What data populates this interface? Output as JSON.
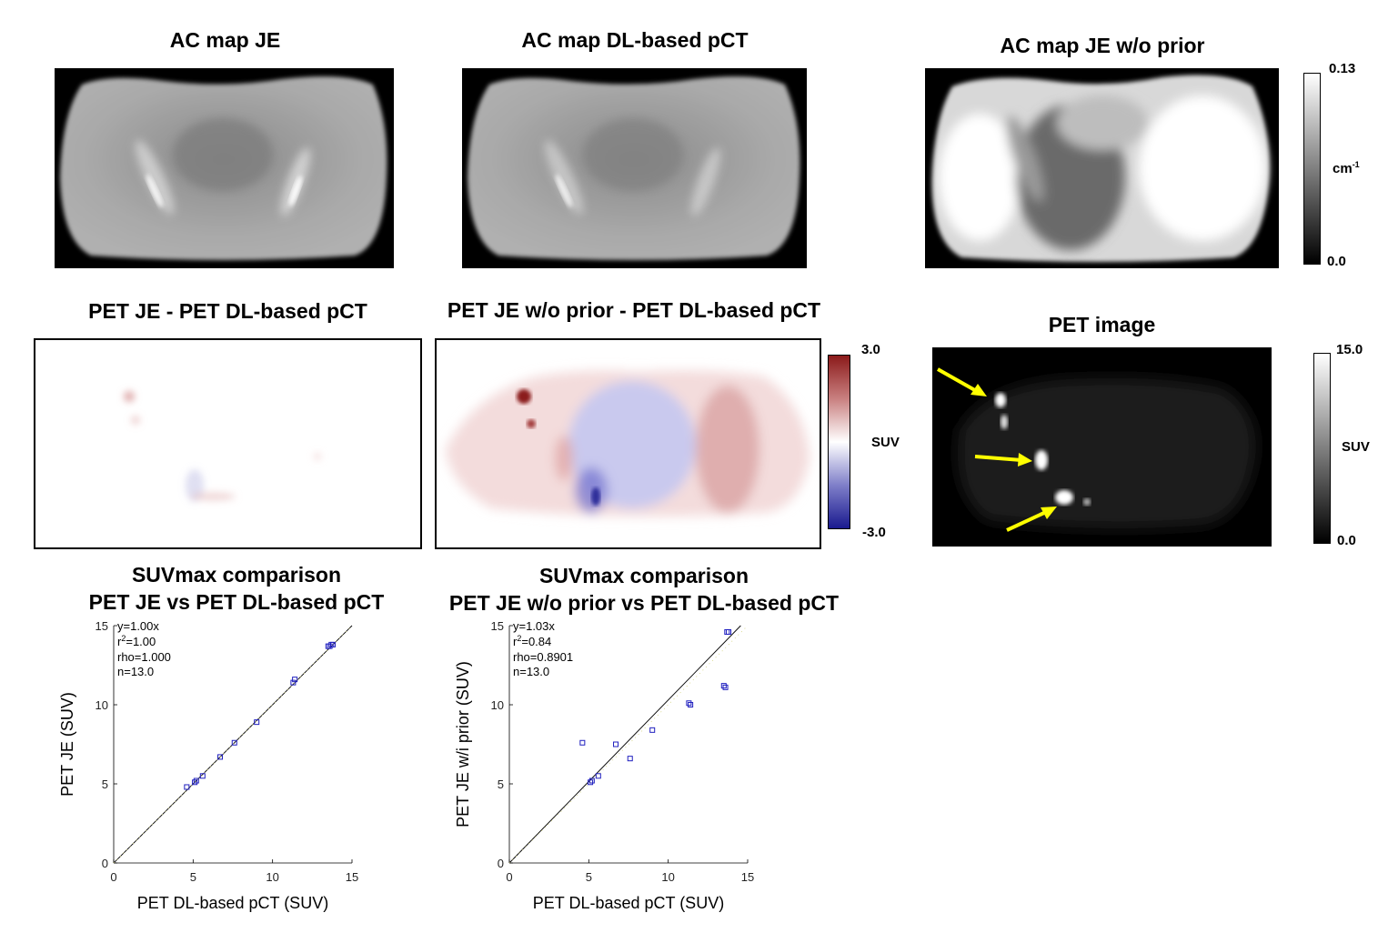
{
  "panels": {
    "ac_je": {
      "title": "AC map JE"
    },
    "ac_dl": {
      "title": "AC map DL-based pCT"
    },
    "ac_noprior": {
      "title": "AC map JE w/o prior"
    },
    "diff_je": {
      "title": "PET JE - PET DL-based pCT"
    },
    "diff_noprior": {
      "title": "PET JE w/o prior - PET DL-based pCT"
    },
    "pet": {
      "title": "PET image"
    }
  },
  "colorbars": {
    "ac": {
      "max": "0.13",
      "min": "0.0",
      "unit_base": "cm",
      "unit_sup": "-1"
    },
    "diff": {
      "max": "3.0",
      "min": "-3.0",
      "unit": "SUV"
    },
    "pet": {
      "max": "15.0",
      "min": "0.0",
      "unit": "SUV"
    }
  },
  "colors": {
    "diff_positive": "#8b1a1a",
    "diff_negative": "#1a1a8f",
    "arrow": "#ffff00",
    "marker": "#1f1fbf"
  },
  "chart_data": [
    {
      "type": "scatter",
      "title": [
        "SUVmax comparison",
        "PET JE vs PET DL-based pCT"
      ],
      "xlabel": "PET DL-based pCT (SUV)",
      "ylabel": "PET JE (SUV)",
      "xlim": [
        0,
        15
      ],
      "ylim": [
        0,
        15
      ],
      "xticks": [
        "0",
        "5",
        "10",
        "15"
      ],
      "yticks": [
        "0",
        "5",
        "10",
        "15"
      ],
      "fit_slope": 1.0,
      "stats": [
        "y=1.00x",
        "r",
        "2",
        "=1.00",
        "rho=1.000",
        "n=13.0"
      ],
      "points": [
        [
          4.6,
          4.8
        ],
        [
          5.1,
          5.1
        ],
        [
          5.2,
          5.2
        ],
        [
          5.6,
          5.5
        ],
        [
          6.7,
          6.7
        ],
        [
          7.6,
          7.6
        ],
        [
          9.0,
          8.9
        ],
        [
          11.3,
          11.4
        ],
        [
          11.4,
          11.6
        ],
        [
          13.5,
          13.7
        ],
        [
          13.7,
          13.8
        ],
        [
          13.8,
          13.8
        ],
        [
          13.6,
          13.7
        ]
      ]
    },
    {
      "type": "scatter",
      "title": [
        "SUVmax comparison",
        "PET JE w/o prior vs PET DL-based pCT"
      ],
      "xlabel": "PET DL-based pCT (SUV)",
      "ylabel": "PET JE w/i prior (SUV)",
      "xlim": [
        0,
        15
      ],
      "ylim": [
        0,
        15
      ],
      "xticks": [
        "0",
        "5",
        "10",
        "15"
      ],
      "yticks": [
        "0",
        "5",
        "10",
        "15"
      ],
      "fit_slope": 1.03,
      "stats": [
        "y=1.03x",
        "r",
        "2",
        "=0.84",
        "rho=0.8901",
        "n=13.0"
      ],
      "points": [
        [
          4.6,
          7.6
        ],
        [
          5.1,
          5.1
        ],
        [
          5.6,
          5.5
        ],
        [
          6.7,
          7.5
        ],
        [
          7.6,
          6.6
        ],
        [
          9.0,
          8.4
        ],
        [
          11.4,
          10.0
        ],
        [
          13.6,
          11.1
        ],
        [
          13.8,
          14.6
        ],
        [
          13.7,
          14.6
        ],
        [
          5.2,
          5.2
        ],
        [
          11.3,
          10.1
        ],
        [
          13.5,
          11.2
        ]
      ]
    }
  ]
}
